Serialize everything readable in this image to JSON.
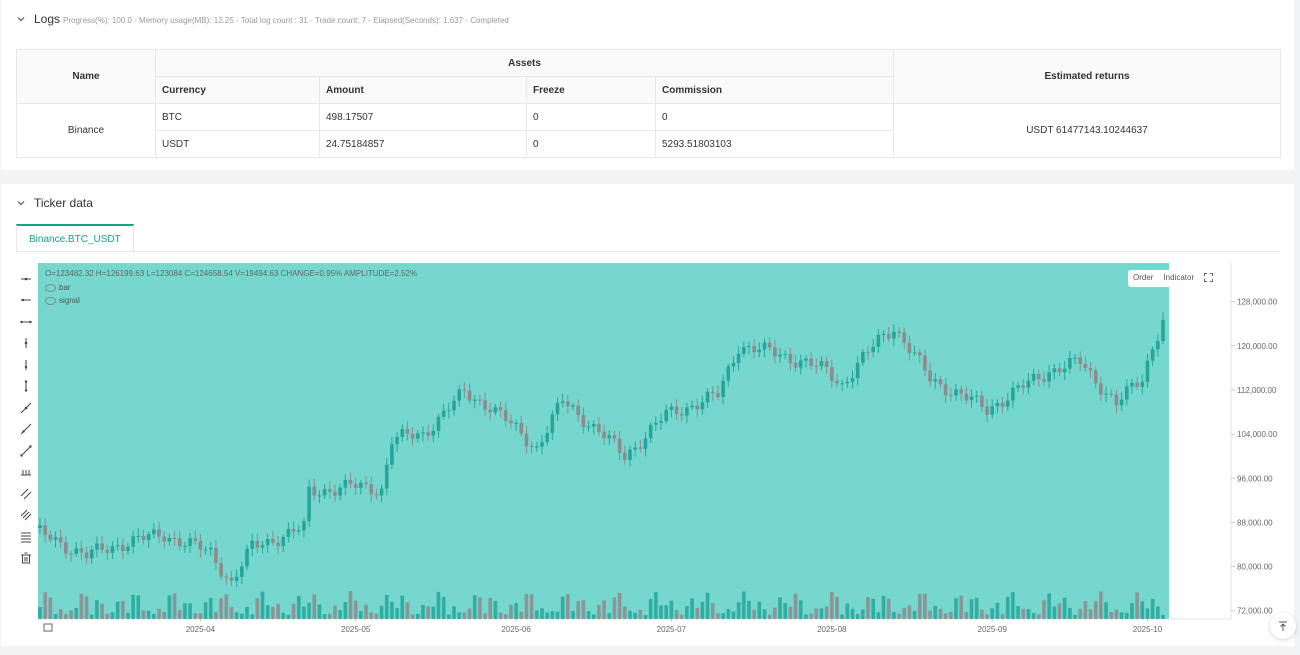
{
  "logs": {
    "title": "Logs",
    "status": "Progress(%): 100.0  - Memory usage(MB): 12.25 - Total log count : 31 - Trade count:  7 - Elapsed(Seconds): 1.637 - Completed"
  },
  "assets_table": {
    "headers": {
      "name": "Name",
      "assets": "Assets",
      "estimated": "Estimated returns"
    },
    "sub_headers": {
      "currency": "Currency",
      "amount": "Amount",
      "freeze": "Freeze",
      "commission": "Commission"
    },
    "exchange": "Binance",
    "rows": [
      {
        "currency": "BTC",
        "amount": "498.17507",
        "freeze": "0",
        "commission": "0"
      },
      {
        "currency": "USDT",
        "amount": "24.75184857",
        "freeze": "0",
        "commission": "5293.51803103"
      }
    ],
    "estimated_returns": "USDT 61477143.10244637"
  },
  "ticker": {
    "title": "Ticker data",
    "tab": "Binance.BTC_USDT",
    "ohlc": "O=123482.32 H=126199.63 L=123084 C=124658.54 V=19494.63 CHANGE=0.95% AMPLITUDE=2.52%",
    "legend": [
      "bar",
      "signal"
    ],
    "buttons": {
      "order": "Order",
      "indicator": "Indicator"
    }
  },
  "colors": {
    "accent": "#12a582",
    "up": "#26a69a",
    "down": "#8c8c8c",
    "band": "#76d7cf"
  },
  "chart_data": {
    "type": "candlestick",
    "series_name": "Binance.BTC_USDT",
    "y_ticks": [
      72000,
      80000,
      88000,
      96000,
      104000,
      112000,
      120000,
      128000
    ],
    "y_tick_labels": [
      "72,000.00",
      "80,000.00",
      "88,000.00",
      "96,000.00",
      "104,000.00",
      "112,000.00",
      "120,000.00",
      "128,000.00"
    ],
    "ylim": [
      70500,
      135000
    ],
    "x_labels": [
      "2025-04",
      "2025-05",
      "2025-06",
      "2025-07",
      "2025-08",
      "2025-09",
      "2025-10"
    ],
    "close_anchors": [
      {
        "date": "2025-03-01",
        "close": 86000
      },
      {
        "date": "2025-03-10",
        "close": 82000
      },
      {
        "date": "2025-03-18",
        "close": 84500
      },
      {
        "date": "2025-03-25",
        "close": 85800
      },
      {
        "date": "2025-04-03",
        "close": 82500
      },
      {
        "date": "2025-04-07",
        "close": 77000
      },
      {
        "date": "2025-04-11",
        "close": 83500
      },
      {
        "date": "2025-04-21",
        "close": 87000
      },
      {
        "date": "2025-04-22",
        "close": 93500
      },
      {
        "date": "2025-04-30",
        "close": 94500
      },
      {
        "date": "2025-05-06",
        "close": 94000
      },
      {
        "date": "2025-05-08",
        "close": 103000
      },
      {
        "date": "2025-05-14",
        "close": 104000
      },
      {
        "date": "2025-05-22",
        "close": 111500
      },
      {
        "date": "2025-05-27",
        "close": 109000
      },
      {
        "date": "2025-06-05",
        "close": 101500
      },
      {
        "date": "2025-06-10",
        "close": 110000
      },
      {
        "date": "2025-06-17",
        "close": 104500
      },
      {
        "date": "2025-06-22",
        "close": 100000
      },
      {
        "date": "2025-06-30",
        "close": 107500
      },
      {
        "date": "2025-07-10",
        "close": 111000
      },
      {
        "date": "2025-07-14",
        "close": 120000
      },
      {
        "date": "2025-07-22",
        "close": 118500
      },
      {
        "date": "2025-07-31",
        "close": 115500
      },
      {
        "date": "2025-08-03",
        "close": 113000
      },
      {
        "date": "2025-08-10",
        "close": 121000
      },
      {
        "date": "2025-08-13",
        "close": 123500
      },
      {
        "date": "2025-08-20",
        "close": 114000
      },
      {
        "date": "2025-08-31",
        "close": 108500
      },
      {
        "date": "2025-09-12",
        "close": 115500
      },
      {
        "date": "2025-09-18",
        "close": 117000
      },
      {
        "date": "2025-09-25",
        "close": 109500
      },
      {
        "date": "2025-09-30",
        "close": 114000
      },
      {
        "date": "2025-10-02",
        "close": 120000
      },
      {
        "date": "2025-10-04",
        "close": 124658.54
      }
    ]
  }
}
